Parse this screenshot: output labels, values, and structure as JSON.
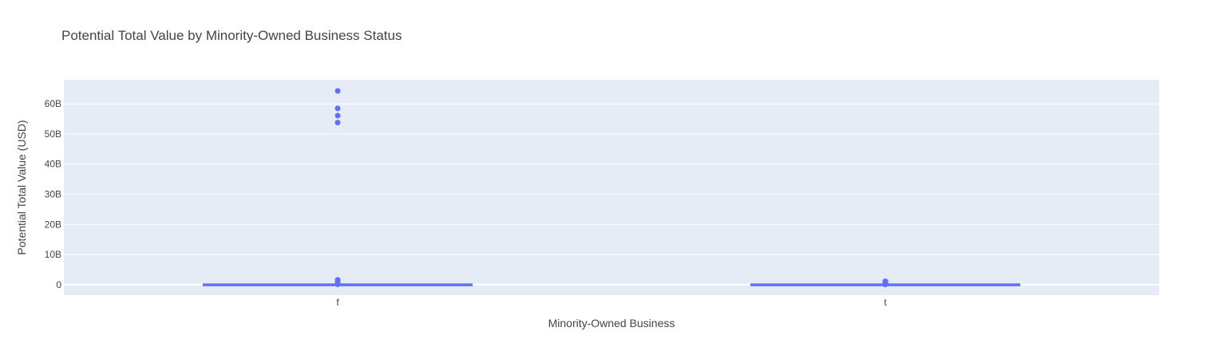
{
  "chart_data": {
    "type": "box",
    "title": "Potential Total Value by Minority-Owned Business Status",
    "xlabel": "Minority-Owned Business",
    "ylabel": "Potential Total Value (USD)",
    "categories": [
      "f",
      "t"
    ],
    "ylim": [
      -3500000000,
      68000000000
    ],
    "yticks": [
      0,
      10000000000,
      20000000000,
      30000000000,
      40000000000,
      50000000000,
      60000000000
    ],
    "ytick_labels": [
      "0",
      "10B",
      "20B",
      "30B",
      "40B",
      "50B",
      "60B"
    ],
    "grid": true,
    "legend": "none",
    "series": [
      {
        "category": "f",
        "q1": 0,
        "median": 0,
        "q3": 0,
        "lowerfence": 0,
        "upperfence": 0,
        "outliers": [
          64300000000,
          58500000000,
          56100000000,
          53800000000,
          1600000000,
          1100000000,
          600000000,
          300000000,
          100000000
        ]
      },
      {
        "category": "t",
        "q1": 0,
        "median": 0,
        "q3": 0,
        "lowerfence": 0,
        "upperfence": 0,
        "outliers": [
          1100000000,
          800000000,
          500000000,
          200000000,
          50000000
        ]
      }
    ],
    "colors": {
      "trace": "#636efa",
      "plot_bg": "#e5ecf6",
      "grid": "#ffffff",
      "text": "#444444"
    }
  }
}
